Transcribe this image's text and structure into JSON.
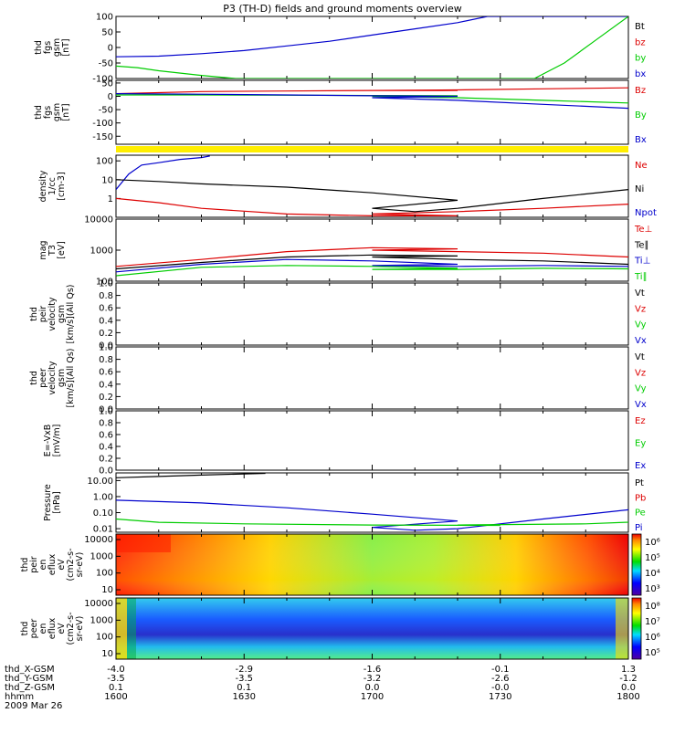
{
  "title": "P3 (TH-D) fields and ground moments overview",
  "date_label": "2009 Mar 26",
  "colors": {
    "black": "#000000",
    "red": "#dd0000",
    "green": "#00cc00",
    "blue": "#0000cc",
    "yellow": "#ffee00",
    "axis": "#000000"
  },
  "chart_data": [
    {
      "id": "panel1",
      "type": "line",
      "ylabel_lines": [
        "thd",
        "fgs",
        "gsm",
        "[nT]"
      ],
      "yticks": [
        "100",
        "50",
        "0",
        "-50",
        "-100"
      ],
      "ylim": [
        -100,
        100
      ],
      "legend": [
        {
          "text": "Bt",
          "color": "#000000"
        },
        {
          "text": "bz",
          "color": "#dd0000"
        },
        {
          "text": "by",
          "color": "#00cc00"
        },
        {
          "text": "bx",
          "color": "#0000cc"
        }
      ],
      "series": [
        {
          "name": "bx",
          "color": "#0000cc",
          "points": [
            [
              1600,
              -30
            ],
            [
              1610,
              -28
            ],
            [
              1620,
              -20
            ],
            [
              1630,
              -10
            ],
            [
              1640,
              5
            ],
            [
              1650,
              20
            ],
            [
              1660,
              40
            ],
            [
              1670,
              60
            ],
            [
              1680,
              80
            ],
            [
              1687,
              100
            ],
            [
              1790,
              100
            ],
            [
              1794,
              -80
            ],
            [
              1796,
              -100
            ]
          ]
        },
        {
          "name": "by",
          "color": "#00cc00",
          "points": [
            [
              1600,
              -60
            ],
            [
              1605,
              -65
            ],
            [
              1610,
              -75
            ],
            [
              1620,
              -90
            ],
            [
              1628,
              -100
            ],
            [
              1738,
              -100
            ],
            [
              1745,
              -50
            ],
            [
              1752,
              20
            ],
            [
              1760,
              100
            ]
          ]
        }
      ]
    },
    {
      "id": "panel2",
      "type": "line",
      "ylabel_lines": [
        "thd",
        "fgs",
        "gsm",
        "[nT]"
      ],
      "yticks": [
        "50",
        "0",
        "-50",
        "-100",
        "-150"
      ],
      "ylim": [
        -180,
        60
      ],
      "legend": [
        {
          "text": "Bz",
          "color": "#dd0000"
        },
        {
          "text": "By",
          "color": "#00cc00"
        },
        {
          "text": "Bx",
          "color": "#0000cc"
        }
      ],
      "series": [
        {
          "name": "Bz",
          "color": "#dd0000",
          "points": [
            [
              1600,
              10
            ],
            [
              1620,
              18
            ],
            [
              1640,
              20
            ],
            [
              1660,
              22
            ],
            [
              1680,
              22
            ],
            [
              1700,
              22
            ],
            [
              1720,
              24
            ],
            [
              1740,
              28
            ],
            [
              1760,
              32
            ],
            [
              1780,
              35
            ],
            [
              1800,
              30
            ]
          ]
        },
        {
          "name": "By",
          "color": "#00cc00",
          "points": [
            [
              1600,
              5
            ],
            [
              1620,
              5
            ],
            [
              1640,
              4
            ],
            [
              1660,
              3
            ],
            [
              1680,
              2
            ],
            [
              1700,
              0
            ],
            [
              1720,
              -5
            ],
            [
              1740,
              -15
            ],
            [
              1760,
              -25
            ],
            [
              1780,
              -35
            ],
            [
              1800,
              -45
            ]
          ]
        },
        {
          "name": "Bx",
          "color": "#0000cc",
          "points": [
            [
              1600,
              10
            ],
            [
              1620,
              8
            ],
            [
              1640,
              5
            ],
            [
              1660,
              2
            ],
            [
              1680,
              0
            ],
            [
              1700,
              -5
            ],
            [
              1720,
              -15
            ],
            [
              1740,
              -30
            ],
            [
              1760,
              -45
            ],
            [
              1780,
              -65
            ],
            [
              1800,
              -85
            ]
          ]
        }
      ]
    },
    {
      "id": "panel4",
      "type": "line",
      "log": true,
      "ylabel_lines": [
        "density",
        "1/cc",
        "[cm-3]"
      ],
      "yticks": [
        "100",
        "10",
        "1"
      ],
      "ylim_log": [
        0.1,
        200
      ],
      "legend": [
        {
          "text": "Ne",
          "color": "#dd0000"
        },
        {
          "text": "Ni",
          "color": "#000000"
        },
        {
          "text": "Npot",
          "color": "#0000cc"
        }
      ],
      "series": [
        {
          "name": "Npot",
          "color": "#0000cc",
          "points": [
            [
              1600,
              3
            ],
            [
              1603,
              20
            ],
            [
              1606,
              60
            ],
            [
              1610,
              80
            ],
            [
              1615,
              120
            ],
            [
              1620,
              150
            ],
            [
              1622,
              180
            ]
          ]
        },
        {
          "name": "Ni",
          "color": "#000000",
          "points": [
            [
              1600,
              10
            ],
            [
              1610,
              8
            ],
            [
              1620,
              6
            ],
            [
              1640,
              4
            ],
            [
              1660,
              2
            ],
            [
              1680,
              0.8
            ],
            [
              1700,
              0.3
            ],
            [
              1710,
              0.2
            ],
            [
              1720,
              0.3
            ],
            [
              1740,
              1
            ],
            [
              1760,
              3
            ],
            [
              1780,
              10
            ],
            [
              1800,
              30
            ]
          ]
        },
        {
          "name": "Ne",
          "color": "#dd0000",
          "points": [
            [
              1600,
              1
            ],
            [
              1610,
              0.6
            ],
            [
              1620,
              0.3
            ],
            [
              1640,
              0.15
            ],
            [
              1660,
              0.12
            ],
            [
              1680,
              0.12
            ],
            [
              1700,
              0.15
            ],
            [
              1720,
              0.2
            ],
            [
              1740,
              0.3
            ],
            [
              1760,
              0.5
            ],
            [
              1780,
              0.9
            ],
            [
              1800,
              1.5
            ]
          ]
        }
      ]
    },
    {
      "id": "panel5",
      "type": "line",
      "log": true,
      "ylabel_lines": [
        "mag",
        "T3",
        "[eV]"
      ],
      "yticks": [
        "10000",
        "1000",
        "100"
      ],
      "ylim_log": [
        100,
        10000
      ],
      "legend": [
        {
          "text": "Te⊥",
          "color": "#dd0000"
        },
        {
          "text": "Te∥",
          "color": "#000000"
        },
        {
          "text": "Ti⊥",
          "color": "#0000cc"
        },
        {
          "text": "Ti∥",
          "color": "#00cc00"
        }
      ],
      "series": [
        {
          "name": "Te⊥",
          "color": "#dd0000",
          "points": [
            [
              1600,
              300
            ],
            [
              1620,
              500
            ],
            [
              1640,
              900
            ],
            [
              1660,
              1200
            ],
            [
              1680,
              1100
            ],
            [
              1700,
              1000
            ],
            [
              1720,
              900
            ],
            [
              1740,
              800
            ],
            [
              1760,
              600
            ],
            [
              1780,
              350
            ],
            [
              1800,
              280
            ]
          ]
        },
        {
          "name": "Te∥",
          "color": "#000000",
          "points": [
            [
              1600,
              250
            ],
            [
              1620,
              400
            ],
            [
              1640,
              600
            ],
            [
              1660,
              700
            ],
            [
              1680,
              650
            ],
            [
              1700,
              600
            ],
            [
              1720,
              500
            ],
            [
              1740,
              450
            ],
            [
              1760,
              350
            ],
            [
              1780,
              280
            ],
            [
              1800,
              260
            ]
          ]
        },
        {
          "name": "Ti⊥",
          "color": "#0000cc",
          "points": [
            [
              1600,
              200
            ],
            [
              1620,
              350
            ],
            [
              1640,
              500
            ],
            [
              1660,
              450
            ],
            [
              1680,
              350
            ],
            [
              1700,
              320
            ],
            [
              1720,
              300
            ],
            [
              1740,
              320
            ],
            [
              1760,
              300
            ],
            [
              1780,
              290
            ],
            [
              1800,
              280
            ]
          ]
        },
        {
          "name": "Ti∥",
          "color": "#00cc00",
          "points": [
            [
              1600,
              150
            ],
            [
              1620,
              280
            ],
            [
              1640,
              320
            ],
            [
              1660,
              300
            ],
            [
              1680,
              260
            ],
            [
              1700,
              240
            ],
            [
              1720,
              240
            ],
            [
              1740,
              260
            ],
            [
              1760,
              250
            ],
            [
              1780,
              240
            ],
            [
              1800,
              240
            ]
          ]
        }
      ]
    },
    {
      "id": "panel6",
      "type": "line",
      "ylabel_lines": [
        "thd",
        "peir",
        "velocity",
        "gsm",
        "[km/s](All Qs)"
      ],
      "yticks": [
        "1.0",
        "0.8",
        "0.6",
        "0.4",
        "0.2",
        "0.0"
      ],
      "ylim": [
        0,
        1
      ],
      "legend": [
        {
          "text": "Vt",
          "color": "#000000"
        },
        {
          "text": "Vz",
          "color": "#dd0000"
        },
        {
          "text": "Vy",
          "color": "#00cc00"
        },
        {
          "text": "Vx",
          "color": "#0000cc"
        }
      ],
      "series": []
    },
    {
      "id": "panel7",
      "type": "line",
      "ylabel_lines": [
        "thd",
        "peer",
        "velocity",
        "gsm",
        "[km/s](All Qs)"
      ],
      "yticks": [
        "1.0",
        "0.8",
        "0.6",
        "0.4",
        "0.2",
        "0.0"
      ],
      "ylim": [
        0,
        1
      ],
      "legend": [
        {
          "text": "Vt",
          "color": "#000000"
        },
        {
          "text": "Vz",
          "color": "#dd0000"
        },
        {
          "text": "Vy",
          "color": "#00cc00"
        },
        {
          "text": "Vx",
          "color": "#0000cc"
        }
      ],
      "series": []
    },
    {
      "id": "panel8",
      "type": "line",
      "ylabel_lines": [
        "E=-VxB",
        "[mV/m]"
      ],
      "yticks": [
        "1.0",
        "0.8",
        "0.6",
        "0.4",
        "0.2",
        "0.0"
      ],
      "ylim": [
        0,
        1
      ],
      "legend": [
        {
          "text": "Ez",
          "color": "#dd0000"
        },
        {
          "text": "Ey",
          "color": "#00cc00"
        },
        {
          "text": "Ex",
          "color": "#0000cc"
        }
      ],
      "series": []
    },
    {
      "id": "panel9",
      "type": "line",
      "log": true,
      "ylabel_lines": [
        "Pressure",
        "[nPa]"
      ],
      "yticks": [
        "10.00",
        "1.00",
        "0.10",
        "0.01"
      ],
      "ylim_log": [
        0.006,
        30
      ],
      "legend": [
        {
          "text": "Pt",
          "color": "#000000"
        },
        {
          "text": "Pb",
          "color": "#dd0000"
        },
        {
          "text": "Pe",
          "color": "#00cc00"
        },
        {
          "text": "Pi",
          "color": "#0000cc"
        }
      ],
      "series": [
        {
          "name": "Pt",
          "color": "#000000",
          "points": [
            [
              1600,
              15
            ],
            [
              1610,
              18
            ],
            [
              1620,
              22
            ],
            [
              1630,
              26
            ],
            [
              1635,
              28
            ]
          ]
        },
        {
          "name": "Pi",
          "color": "#0000cc",
          "points": [
            [
              1600,
              0.6
            ],
            [
              1620,
              0.4
            ],
            [
              1640,
              0.2
            ],
            [
              1660,
              0.08
            ],
            [
              1680,
              0.03
            ],
            [
              1700,
              0.012
            ],
            [
              1710,
              0.008
            ],
            [
              1720,
              0.01
            ],
            [
              1740,
              0.04
            ],
            [
              1760,
              0.15
            ],
            [
              1780,
              0.5
            ],
            [
              1800,
              1.5
            ]
          ]
        },
        {
          "name": "Pe",
          "color": "#00cc00",
          "points": [
            [
              1600,
              0.04
            ],
            [
              1610,
              0.025
            ],
            [
              1630,
              0.02
            ],
            [
              1660,
              0.017
            ],
            [
              1690,
              0.016
            ],
            [
              1720,
              0.017
            ],
            [
              1750,
              0.02
            ],
            [
              1780,
              0.04
            ],
            [
              1800,
              0.08
            ]
          ]
        }
      ]
    },
    {
      "id": "panel10",
      "type": "heatmap",
      "log": true,
      "ylabel_lines": [
        "thd",
        "peir",
        "en",
        "eflux",
        "eV",
        "(cm2-s-",
        "sr-eV)"
      ],
      "yticks": [
        "10000",
        "1000",
        "100",
        "10"
      ],
      "colorbar_ticks": [
        "10⁶",
        "10⁵",
        "10⁴",
        "10³"
      ]
    },
    {
      "id": "panel11",
      "type": "heatmap",
      "log": true,
      "ylabel_lines": [
        "thd",
        "peer",
        "en",
        "eflux",
        "eV",
        "(cm2-s-",
        "sr-eV)"
      ],
      "yticks": [
        "10000",
        "1000",
        "100",
        "10"
      ],
      "colorbar_ticks": [
        "10⁸",
        "10⁷",
        "10⁶",
        "10⁵"
      ]
    }
  ],
  "xaxis": {
    "rows": [
      {
        "label": "thd_X-GSM",
        "values": [
          "-4.0",
          "-2.9",
          "-1.6",
          "-0.1",
          "1.3"
        ]
      },
      {
        "label": "thd_Y-GSM",
        "values": [
          "-3.5",
          "-3.5",
          "-3.2",
          "-2.6",
          "-1.2"
        ]
      },
      {
        "label": "thd_Z-GSM",
        "values": [
          "0.1",
          "0.1",
          "0.0",
          "-0.0",
          "0.0"
        ]
      },
      {
        "label": "hhmm",
        "values": [
          "1600",
          "1630",
          "1700",
          "1730",
          "1800"
        ]
      }
    ]
  }
}
